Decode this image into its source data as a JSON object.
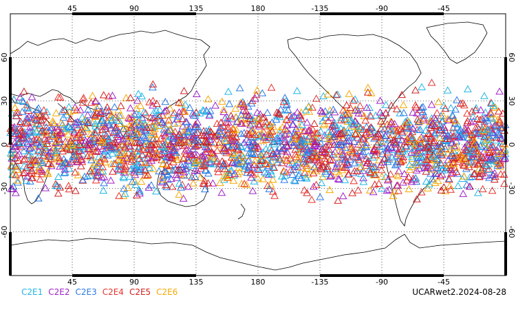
{
  "map": {
    "lon_ticks": [
      "45",
      "90",
      "135",
      "180",
      "-135",
      "-90",
      "-45"
    ],
    "lat_ticks": [
      "60",
      "30",
      "0",
      "-30",
      "-60"
    ],
    "lon_range": [
      0,
      360
    ],
    "lat_range": [
      -90,
      90
    ],
    "grid": "dotted",
    "marker": "triangle"
  },
  "legend": [
    {
      "label": "C2E1",
      "color": "#1fb5e6"
    },
    {
      "label": "C2E2",
      "color": "#a020c8"
    },
    {
      "label": "C2E3",
      "color": "#2878e6"
    },
    {
      "label": "C2E4",
      "color": "#e6322d"
    },
    {
      "label": "C2E5",
      "color": "#d21e1e"
    },
    {
      "label": "C2E6",
      "color": "#f5a800"
    }
  ],
  "caption": "UCARwet2.2024-08-28"
}
